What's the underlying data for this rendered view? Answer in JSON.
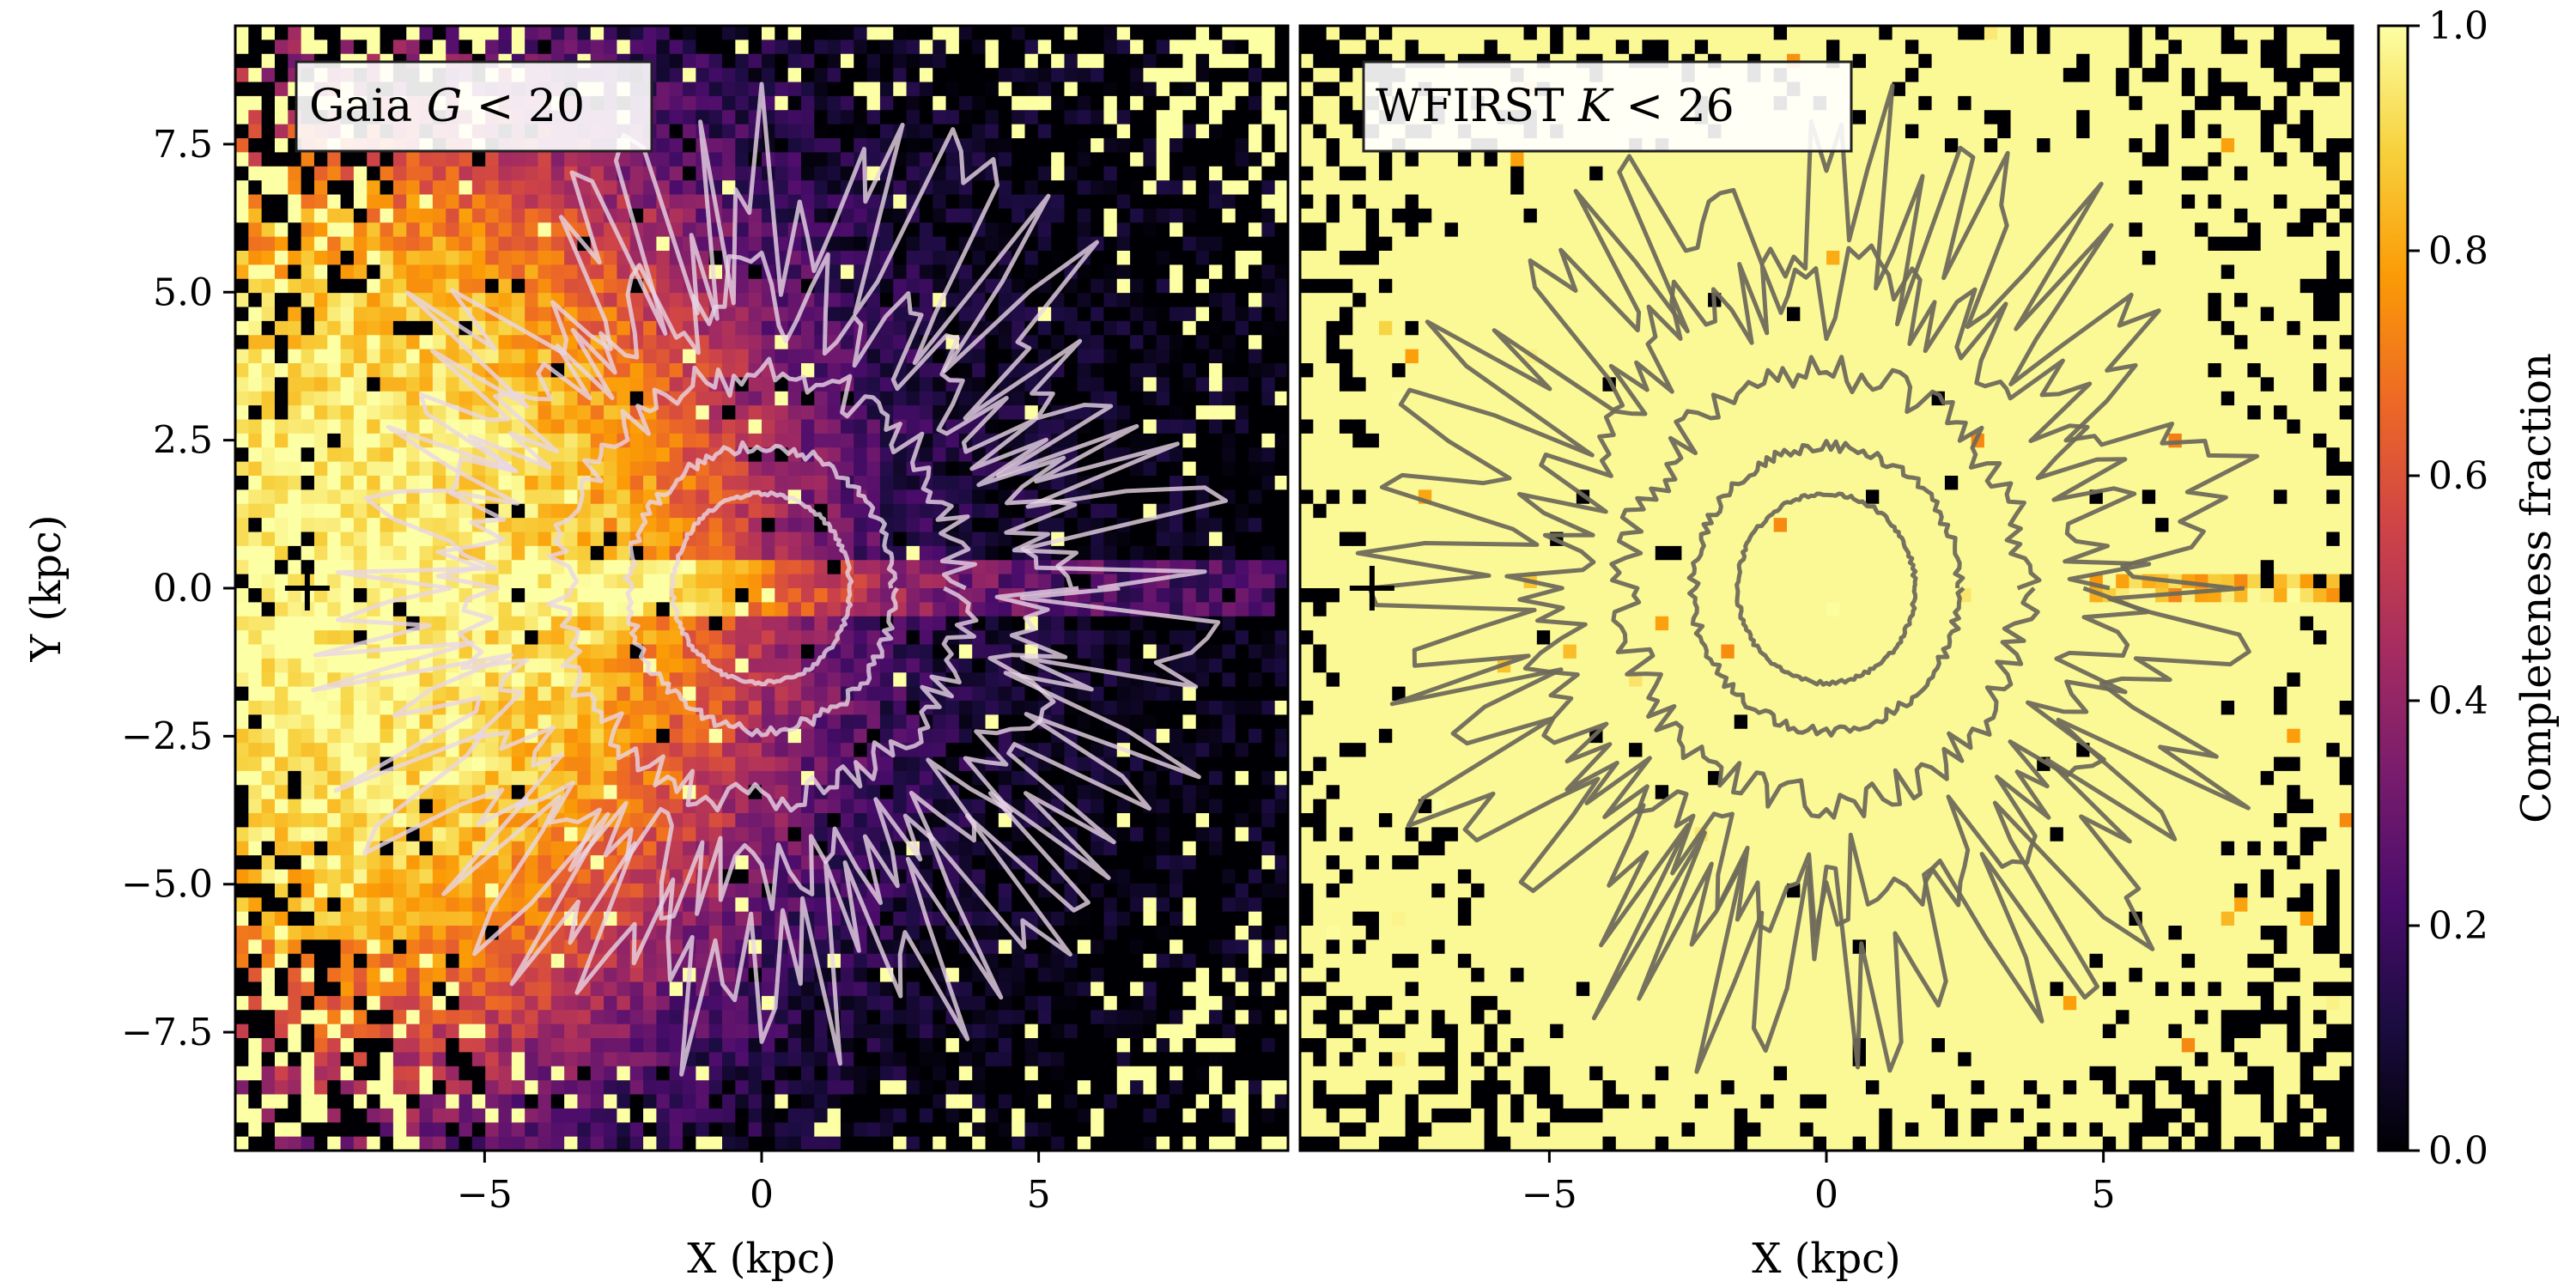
{
  "chart_data": [
    {
      "type": "heatmap",
      "panel": "left",
      "title": "Gaia G < 20",
      "title_parts": [
        "Gaia ",
        "G",
        " < 20"
      ],
      "xlabel": "X (kpc)",
      "ylabel": "Y (kpc)",
      "xlim": [
        -9.5,
        9.5
      ],
      "ylim": [
        -9.5,
        9.5
      ],
      "xticks": [
        -5,
        0,
        5
      ],
      "xtick_labels": [
        "−5",
        "0",
        "5"
      ],
      "yticks": [
        7.5,
        5.0,
        2.5,
        0.0,
        -2.5,
        -5.0,
        -7.5
      ],
      "ytick_labels": [
        "7.5",
        "5.0",
        "2.5",
        "0.0",
        "−2.5",
        "−5.0",
        "−7.5"
      ],
      "colormap": "inferno",
      "value_range": [
        0.0,
        1.0
      ],
      "description": "Completeness ~1 near the Sun (X=-8), decreasing to ~0 beyond X~6; brighter stripe along Y=0",
      "sun_marker": {
        "x": -8.2,
        "y": 0.0,
        "symbol": "+"
      },
      "contour_radii_kpc": [
        1.6,
        2.4,
        3.6,
        5.0,
        6.6
      ],
      "contour_color": "#e8d6e6"
    },
    {
      "type": "heatmap",
      "panel": "right",
      "title": "WFIRST K < 26",
      "title_parts": [
        "WFIRST ",
        "K",
        " < 26"
      ],
      "xlabel": "X (kpc)",
      "ylabel": "",
      "xlim": [
        -9.5,
        9.5
      ],
      "ylim": [
        -9.5,
        9.5
      ],
      "xticks": [
        -5,
        0,
        5
      ],
      "xtick_labels": [
        "−5",
        "0",
        "5"
      ],
      "colormap": "inferno",
      "value_range": [
        0.0,
        1.0
      ],
      "description": "Completeness ~1 nearly everywhere, slight incompleteness along Y=0 at X>5",
      "sun_marker": {
        "x": -8.2,
        "y": 0.0,
        "symbol": "+"
      },
      "contour_radii_kpc": [
        1.6,
        2.4,
        3.6,
        5.0,
        6.6
      ],
      "contour_color": "#6f6a5a"
    }
  ],
  "colorbar": {
    "label": "Completeness fraction",
    "ticks": [
      0.0,
      0.2,
      0.4,
      0.6,
      0.8,
      1.0
    ],
    "tick_labels": [
      "0.0",
      "0.2",
      "0.4",
      "0.6",
      "0.8",
      "1.0"
    ],
    "colors": [
      "#000004",
      "#1b0c41",
      "#4a0c6b",
      "#781c6d",
      "#a52c60",
      "#cf4446",
      "#ed6925",
      "#fb9b06",
      "#f7d13d",
      "#fcffa4"
    ]
  }
}
